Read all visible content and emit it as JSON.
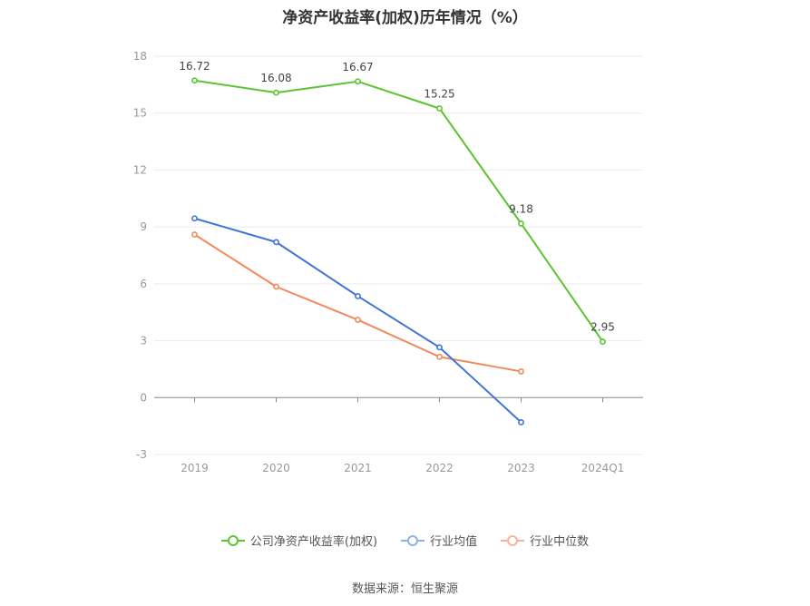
{
  "chart_data": {
    "type": "line",
    "title": "净资产收益率(加权)历年情况（%）",
    "categories": [
      "2019",
      "2020",
      "2021",
      "2022",
      "2023",
      "2024Q1"
    ],
    "ylim": [
      -3,
      18
    ],
    "yticks": [
      18,
      15,
      12,
      9,
      6,
      3,
      0,
      -3
    ],
    "grid": true,
    "legend_position": "bottom",
    "series": [
      {
        "name": "公司净资产收益率(加权)",
        "color": "#5cc431",
        "values": [
          16.72,
          16.08,
          16.67,
          15.25,
          9.18,
          2.95
        ],
        "labels": [
          "16.72",
          "16.08",
          "16.67",
          "15.25",
          "9.18",
          "2.95"
        ]
      },
      {
        "name": "行业均值",
        "color": "#3f74d9",
        "values": [
          9.45,
          8.2,
          5.35,
          2.65,
          -1.3,
          null
        ],
        "labels": []
      },
      {
        "name": "行业中位数",
        "color": "#f2895c",
        "values": [
          8.6,
          5.85,
          4.1,
          2.15,
          1.38,
          null
        ],
        "labels": []
      }
    ]
  },
  "legend": {
    "items": [
      {
        "label": "公司净资产收益率(加权)",
        "color": "#5cc431"
      },
      {
        "label": "行业均值",
        "color": "#8fb0ee"
      },
      {
        "label": "行业中位数",
        "color": "#f6b59a"
      }
    ]
  },
  "source": "数据来源：恒生聚源"
}
